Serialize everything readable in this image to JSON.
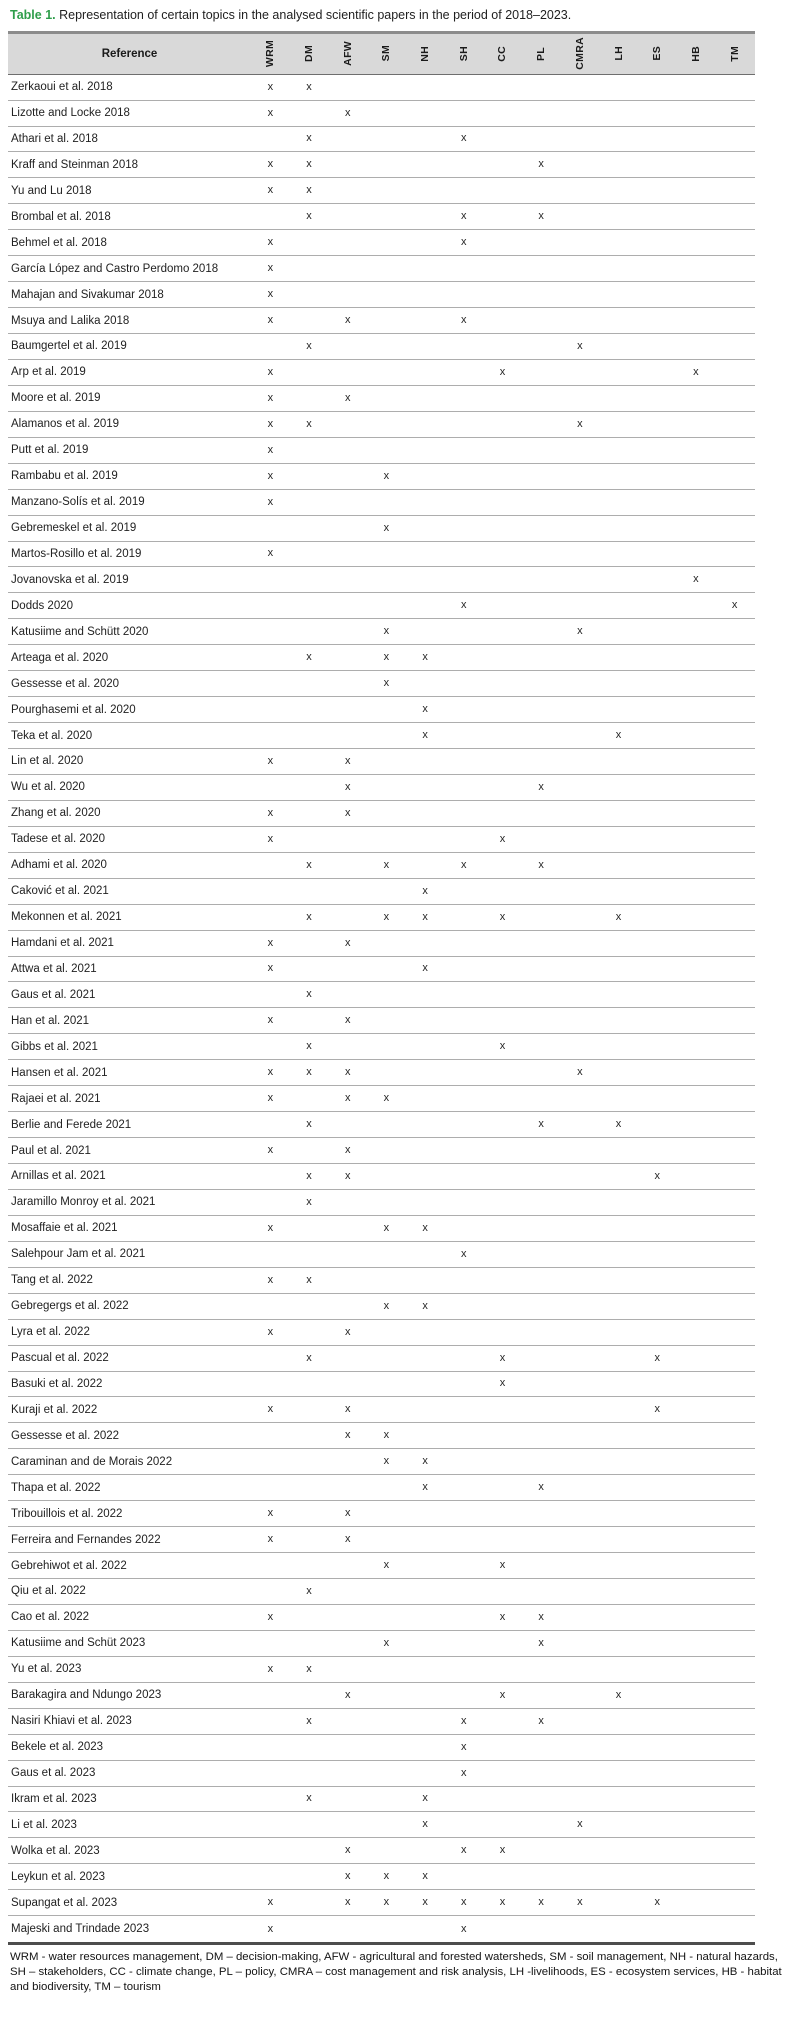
{
  "title": {
    "label": "Table 1.",
    "text": " Representation of certain topics in the analysed scientific papers in the period of 2018–2023."
  },
  "colors": {
    "accent_green": "#2f9e4b",
    "header_bg": "#d9d9d9"
  },
  "table": {
    "reference_header": "Reference",
    "columns": [
      "WRM",
      "DM",
      "AFW",
      "SM",
      "NH",
      "SH",
      "CC",
      "PL",
      "CMRA",
      "LH",
      "ES",
      "HB",
      "TM"
    ],
    "mark": "x",
    "rows": [
      {
        "ref": "Zerkaoui et al. 2018",
        "topics": [
          "WRM",
          "DM"
        ]
      },
      {
        "ref": "Lizotte and Locke 2018",
        "topics": [
          "WRM",
          "AFW"
        ]
      },
      {
        "ref": "Athari et al. 2018",
        "topics": [
          "DM",
          "SH"
        ]
      },
      {
        "ref": "Kraff and Steinman 2018",
        "topics": [
          "WRM",
          "DM",
          "PL"
        ]
      },
      {
        "ref": "Yu and Lu 2018",
        "topics": [
          "WRM",
          "DM"
        ]
      },
      {
        "ref": "Brombal et al. 2018",
        "topics": [
          "DM",
          "SH",
          "PL"
        ]
      },
      {
        "ref": "Behmel et al. 2018",
        "topics": [
          "WRM",
          "SH"
        ]
      },
      {
        "ref": "García López and Castro Perdomo 2018",
        "topics": [
          "WRM"
        ]
      },
      {
        "ref": "Mahajan and Sivakumar 2018",
        "topics": [
          "WRM"
        ]
      },
      {
        "ref": "Msuya and Lalika 2018",
        "topics": [
          "WRM",
          "AFW",
          "SH"
        ]
      },
      {
        "ref": "Baumgertel et al. 2019",
        "topics": [
          "DM",
          "CMRA"
        ]
      },
      {
        "ref": "Arp et al. 2019",
        "topics": [
          "WRM",
          "CC",
          "HB"
        ]
      },
      {
        "ref": "Moore et al. 2019",
        "topics": [
          "WRM",
          "AFW"
        ]
      },
      {
        "ref": "Alamanos et al. 2019",
        "topics": [
          "WRM",
          "DM",
          "CMRA"
        ]
      },
      {
        "ref": "Putt et al. 2019",
        "topics": [
          "WRM"
        ]
      },
      {
        "ref": "Rambabu et al. 2019",
        "topics": [
          "WRM",
          "SM"
        ]
      },
      {
        "ref": "Manzano-Solís et al. 2019",
        "topics": [
          "WRM"
        ]
      },
      {
        "ref": "Gebremeskel et al. 2019",
        "topics": [
          "SM"
        ]
      },
      {
        "ref": "Martos-Rosillo et al. 2019",
        "topics": [
          "WRM"
        ]
      },
      {
        "ref": "Jovanovska et al. 2019",
        "topics": [
          "HB"
        ]
      },
      {
        "ref": "Dodds 2020",
        "topics": [
          "SH",
          "TM"
        ]
      },
      {
        "ref": "Katusiime and Schütt 2020",
        "topics": [
          "SM",
          "CMRA"
        ]
      },
      {
        "ref": "Arteaga et al. 2020",
        "topics": [
          "DM",
          "SM",
          "NH"
        ]
      },
      {
        "ref": "Gessesse et al. 2020",
        "topics": [
          "SM"
        ]
      },
      {
        "ref": "Pourghasemi et al. 2020",
        "topics": [
          "NH"
        ]
      },
      {
        "ref": "Teka et al. 2020",
        "topics": [
          "NH",
          "LH"
        ]
      },
      {
        "ref": "Lin et al. 2020",
        "topics": [
          "WRM",
          "AFW"
        ]
      },
      {
        "ref": "Wu et al. 2020",
        "topics": [
          "AFW",
          "PL"
        ]
      },
      {
        "ref": "Zhang et al. 2020",
        "topics": [
          "WRM",
          "AFW"
        ]
      },
      {
        "ref": "Tadese et al. 2020",
        "topics": [
          "WRM",
          "CC"
        ]
      },
      {
        "ref": "Adhami et al. 2020",
        "topics": [
          "DM",
          "SM",
          "SH",
          "PL"
        ]
      },
      {
        "ref": "Caković et al. 2021",
        "topics": [
          "NH"
        ]
      },
      {
        "ref": "Mekonnen et al. 2021",
        "topics": [
          "DM",
          "SM",
          "NH",
          "CC",
          "LH"
        ]
      },
      {
        "ref": "Hamdani et al. 2021",
        "topics": [
          "WRM",
          "AFW"
        ]
      },
      {
        "ref": "Attwa et al. 2021",
        "topics": [
          "WRM",
          "NH"
        ]
      },
      {
        "ref": "Gaus et al. 2021",
        "topics": [
          "DM"
        ]
      },
      {
        "ref": "Han et al. 2021",
        "topics": [
          "WRM",
          "AFW"
        ]
      },
      {
        "ref": "Gibbs et al. 2021",
        "topics": [
          "DM",
          "CC"
        ]
      },
      {
        "ref": "Hansen et al. 2021",
        "topics": [
          "WRM",
          "DM",
          "AFW",
          "CMRA"
        ]
      },
      {
        "ref": "Rajaei et al. 2021",
        "topics": [
          "WRM",
          "AFW",
          "SM"
        ]
      },
      {
        "ref": "Berlie and Ferede 2021",
        "topics": [
          "DM",
          "PL",
          "LH"
        ]
      },
      {
        "ref": "Paul et al. 2021",
        "topics": [
          "WRM",
          "AFW"
        ]
      },
      {
        "ref": "Arnillas et al. 2021",
        "topics": [
          "DM",
          "AFW",
          "ES"
        ]
      },
      {
        "ref": "Jaramillo Monroy et al. 2021",
        "topics": [
          "DM"
        ]
      },
      {
        "ref": "Mosaffaie et al. 2021",
        "topics": [
          "WRM",
          "SM",
          "NH"
        ]
      },
      {
        "ref": "Salehpour Jam et al. 2021",
        "topics": [
          "SH"
        ]
      },
      {
        "ref": "Tang et al. 2022",
        "topics": [
          "WRM",
          "DM"
        ]
      },
      {
        "ref": "Gebregergs et al. 2022",
        "topics": [
          "SM",
          "NH"
        ]
      },
      {
        "ref": "Lyra et al. 2022",
        "topics": [
          "WRM",
          "AFW"
        ]
      },
      {
        "ref": "Pascual et al. 2022",
        "topics": [
          "DM",
          "CC",
          "ES"
        ]
      },
      {
        "ref": "Basuki et al. 2022",
        "topics": [
          "CC"
        ]
      },
      {
        "ref": "Kuraji et al. 2022",
        "topics": [
          "WRM",
          "AFW",
          "ES"
        ]
      },
      {
        "ref": "Gessesse et al. 2022",
        "topics": [
          "AFW",
          "SM"
        ]
      },
      {
        "ref": "Caraminan and de Morais 2022",
        "topics": [
          "SM",
          "NH"
        ]
      },
      {
        "ref": "Thapa et al. 2022",
        "topics": [
          "NH",
          "PL"
        ]
      },
      {
        "ref": "Tribouillois et al. 2022",
        "topics": [
          "WRM",
          "AFW"
        ]
      },
      {
        "ref": "Ferreira and Fernandes 2022",
        "topics": [
          "WRM",
          "AFW"
        ]
      },
      {
        "ref": "Gebrehiwot et al. 2022",
        "topics": [
          "SM",
          "CC"
        ]
      },
      {
        "ref": "Qiu et al. 2022",
        "topics": [
          "DM"
        ]
      },
      {
        "ref": "Cao et al. 2022",
        "topics": [
          "WRM",
          "CC",
          "PL"
        ]
      },
      {
        "ref": "Katusiime and Schüt 2023",
        "topics": [
          "SM",
          "PL"
        ]
      },
      {
        "ref": "Yu et al. 2023",
        "topics": [
          "WRM",
          "DM"
        ]
      },
      {
        "ref": "Barakagira and Ndungo 2023",
        "topics": [
          "AFW",
          "CC",
          "LH"
        ]
      },
      {
        "ref": "Nasiri Khiavi et al. 2023",
        "topics": [
          "DM",
          "SH",
          "PL"
        ]
      },
      {
        "ref": "Bekele et al. 2023",
        "topics": [
          "SH"
        ]
      },
      {
        "ref": "Gaus et al. 2023",
        "topics": [
          "SH"
        ]
      },
      {
        "ref": "Ikram et al. 2023",
        "topics": [
          "DM",
          "NH"
        ]
      },
      {
        "ref": "Li et al. 2023",
        "topics": [
          "NH",
          "CMRA"
        ]
      },
      {
        "ref": "Wolka et al. 2023",
        "topics": [
          "AFW",
          "SH",
          "CC"
        ]
      },
      {
        "ref": "Leykun et al. 2023",
        "topics": [
          "AFW",
          "SM",
          "NH"
        ]
      },
      {
        "ref": "Supangat et al. 2023",
        "topics": [
          "WRM",
          "AFW",
          "SM",
          "NH",
          "SH",
          "CC",
          "PL",
          "CMRA",
          "ES"
        ]
      },
      {
        "ref": "Majeski and Trindade 2023",
        "topics": [
          "WRM",
          "SH"
        ]
      }
    ]
  },
  "footnote": "WRM - water resources management, DM – decision-making, AFW - agricultural and forested watersheds, SM - soil management, NH - natural hazards, SH – stakeholders, CC - climate change, PL – policy, CMRA – cost management and risk analysis, LH -livelihoods, ES - ecosystem services, HB - habitat and biodiversity, TM – tourism"
}
